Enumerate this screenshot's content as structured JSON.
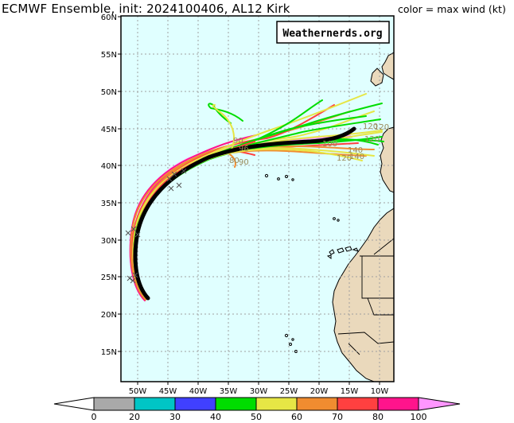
{
  "header": {
    "title": "ECMWF Ensemble, init: 2024100406, AL12 Kirk",
    "subtitle": "color = max wind (kt)"
  },
  "watermark": "Weathernerds.org",
  "map": {
    "lon_range": [
      -54,
      -8
    ],
    "lat_range": [
      11,
      60
    ],
    "lat_labels": [
      "60N",
      "55N",
      "50N",
      "45N",
      "40N",
      "35N",
      "30N",
      "25N",
      "20N",
      "15N"
    ],
    "lon_labels": [
      "50W",
      "45W",
      "40W",
      "35W",
      "30W",
      "25W",
      "20W",
      "15W",
      "10W"
    ],
    "ocean_color": "#e0ffff",
    "land_color": "#ead9bc"
  },
  "colorbar": {
    "ticks": [
      "0",
      "20",
      "30",
      "40",
      "50",
      "60",
      "70",
      "80",
      "100"
    ],
    "colors": [
      "#a9a9a9",
      "#00c5c5",
      "#4040ff",
      "#00dd00",
      "#e6e645",
      "#f08c30",
      "#ff4040",
      "#ff148c",
      "#ff96ff"
    ]
  },
  "track_labels": [
    "120",
    "120",
    "120",
    "140",
    "140",
    "120",
    "100",
    "90",
    "96",
    "80",
    "90"
  ]
}
